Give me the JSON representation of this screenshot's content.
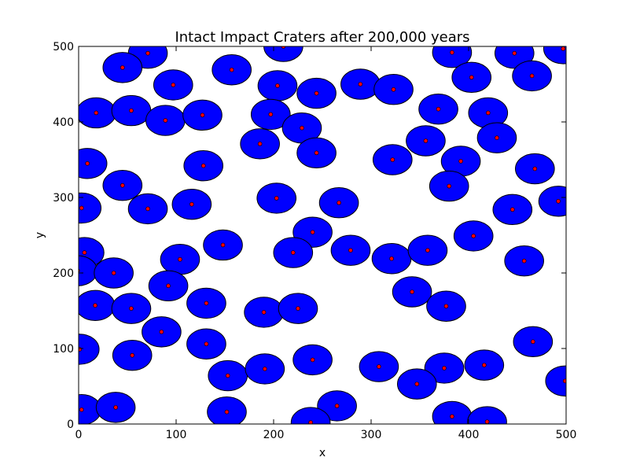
{
  "chart_data": {
    "type": "scatter",
    "title": "Intact Impact Craters after 200,000 years",
    "xlabel": "x",
    "ylabel": "y",
    "xlim": [
      0,
      500
    ],
    "ylim": [
      0,
      500
    ],
    "xticks": [
      "0",
      "100",
      "200",
      "300",
      "400",
      "500"
    ],
    "yticks": [
      "0",
      "100",
      "200",
      "300",
      "400",
      "500"
    ],
    "grid": false,
    "crater_radius": 20,
    "colors": {
      "crater_fill": "#0000ff",
      "crater_edge": "#000000",
      "center_marker": "#ff0000",
      "axes": "#000000",
      "background": "#ffffff"
    },
    "points": [
      [
        71,
        491
      ],
      [
        210,
        500
      ],
      [
        383,
        492
      ],
      [
        447,
        491
      ],
      [
        497,
        497
      ],
      [
        45,
        472
      ],
      [
        157,
        469
      ],
      [
        97,
        449
      ],
      [
        204,
        448
      ],
      [
        289,
        450
      ],
      [
        403,
        459
      ],
      [
        465,
        461
      ],
      [
        323,
        443
      ],
      [
        244,
        438
      ],
      [
        18,
        412
      ],
      [
        54,
        415
      ],
      [
        89,
        402
      ],
      [
        127,
        409
      ],
      [
        197,
        410
      ],
      [
        369,
        417
      ],
      [
        420,
        412
      ],
      [
        229,
        392
      ],
      [
        429,
        379
      ],
      [
        186,
        371
      ],
      [
        356,
        375
      ],
      [
        244,
        359
      ],
      [
        322,
        350
      ],
      [
        392,
        348
      ],
      [
        9,
        345
      ],
      [
        128,
        342
      ],
      [
        468,
        338
      ],
      [
        45,
        316
      ],
      [
        380,
        315
      ],
      [
        3,
        286
      ],
      [
        71,
        285
      ],
      [
        116,
        291
      ],
      [
        203,
        299
      ],
      [
        267,
        293
      ],
      [
        445,
        284
      ],
      [
        492,
        295
      ],
      [
        240,
        254
      ],
      [
        405,
        249
      ],
      [
        148,
        237
      ],
      [
        6,
        227
      ],
      [
        104,
        218
      ],
      [
        220,
        227
      ],
      [
        279,
        230
      ],
      [
        321,
        219
      ],
      [
        358,
        230
      ],
      [
        457,
        216
      ],
      [
        -1,
        203
      ],
      [
        36,
        200
      ],
      [
        92,
        183
      ],
      [
        342,
        175
      ],
      [
        17,
        157
      ],
      [
        54,
        153
      ],
      [
        131,
        160
      ],
      [
        190,
        148
      ],
      [
        225,
        153
      ],
      [
        377,
        156
      ],
      [
        85,
        122
      ],
      [
        466,
        109
      ],
      [
        1,
        99
      ],
      [
        55,
        91
      ],
      [
        131,
        106
      ],
      [
        240,
        85
      ],
      [
        153,
        64
      ],
      [
        191,
        73
      ],
      [
        308,
        76
      ],
      [
        375,
        74
      ],
      [
        416,
        78
      ],
      [
        499,
        57
      ],
      [
        347,
        53
      ],
      [
        3,
        19
      ],
      [
        38,
        22
      ],
      [
        152,
        16
      ],
      [
        265,
        24
      ],
      [
        238,
        2
      ],
      [
        383,
        10
      ],
      [
        419,
        3
      ]
    ]
  }
}
